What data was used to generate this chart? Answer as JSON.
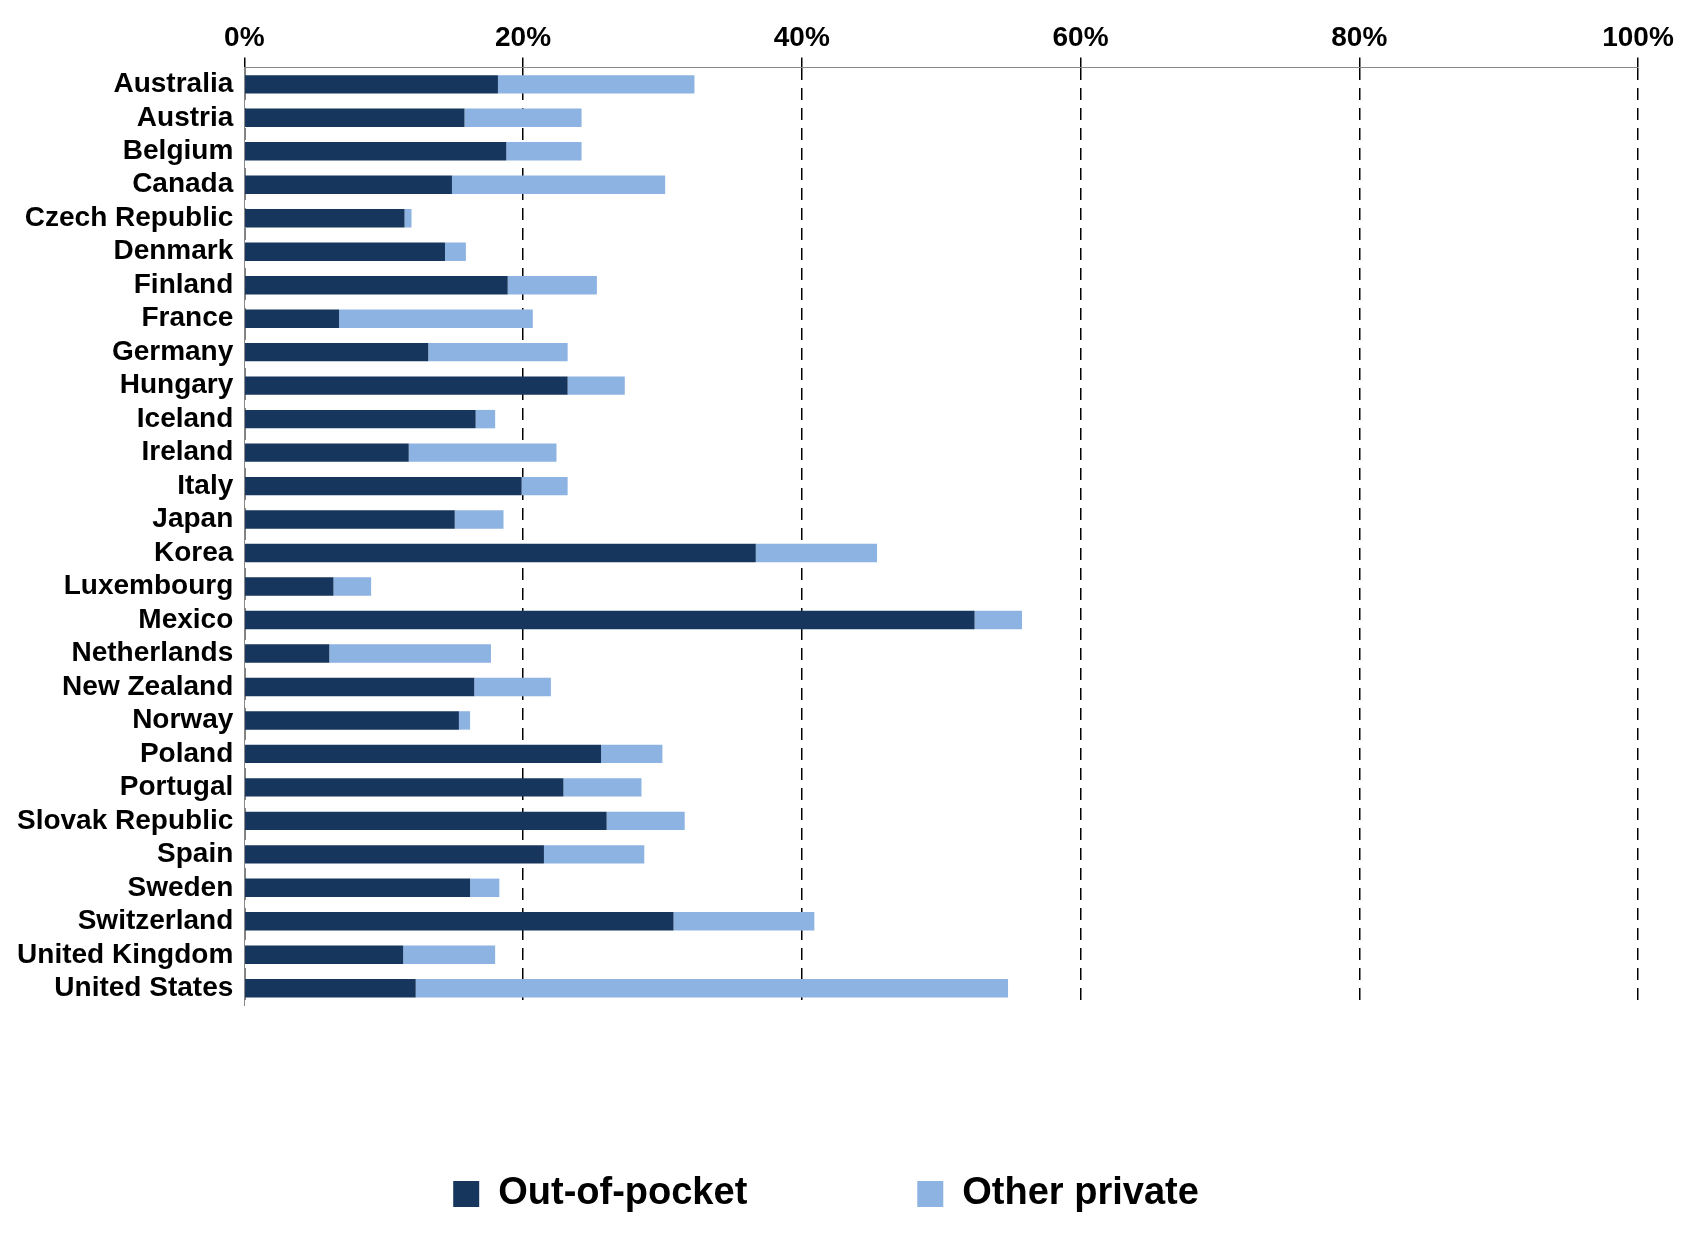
{
  "chart_data": {
    "type": "bar",
    "orientation": "horizontal",
    "stacked": true,
    "grid": "x",
    "legend": "bottom",
    "categories": [
      "Australia",
      "Austria",
      "Belgium",
      "Canada",
      "Czech Republic",
      "Denmark",
      "Finland",
      "France",
      "Germany",
      "Hungary",
      "Iceland",
      "Ireland",
      "Italy",
      "Japan",
      "Korea",
      "Luxembourg",
      "Mexico",
      "Netherlands",
      "New Zealand",
      "Norway",
      "Poland",
      "Portugal",
      "Slovak Republic",
      "Spain",
      "Sweden",
      "Switzerland",
      "United Kingdom",
      "United States"
    ],
    "xlim": [
      0,
      100
    ],
    "xticks": [
      {
        "value": 0,
        "label": "0%"
      },
      {
        "value": 20,
        "label": "20%"
      },
      {
        "value": 40,
        "label": "40%"
      },
      {
        "value": 60,
        "label": "60%"
      },
      {
        "value": 80,
        "label": "80%"
      },
      {
        "value": 100,
        "label": "100%"
      }
    ],
    "series": [
      {
        "name": "Out-of-pocket",
        "color": "#17365d",
        "values": [
          18.2,
          15.8,
          18.8,
          14.9,
          11.5,
          14.4,
          18.9,
          6.8,
          13.2,
          23.2,
          16.6,
          11.8,
          19.9,
          15.1,
          36.7,
          6.4,
          52.4,
          6.1,
          16.5,
          15.4,
          25.6,
          22.9,
          26.0,
          21.5,
          16.2,
          30.8,
          11.4,
          12.3
        ]
      },
      {
        "name": "Other private",
        "color": "#8db3e2",
        "values": [
          14.1,
          8.4,
          5.4,
          15.3,
          0.5,
          1.5,
          6.4,
          13.9,
          10.0,
          4.1,
          1.4,
          10.6,
          3.3,
          3.5,
          8.7,
          2.7,
          3.4,
          11.6,
          5.5,
          0.8,
          4.4,
          5.6,
          5.6,
          7.2,
          2.1,
          10.1,
          6.6,
          42.5
        ]
      }
    ]
  }
}
